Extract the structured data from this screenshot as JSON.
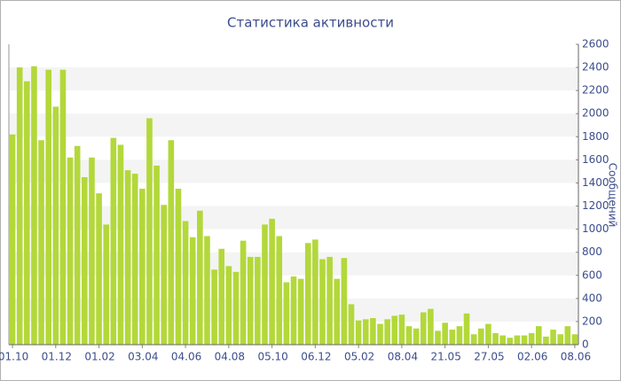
{
  "chart_data": {
    "type": "bar",
    "title": "Статистика активности",
    "y_label": "Сообщений",
    "categories": [
      "01.10",
      null,
      null,
      null,
      null,
      null,
      "01.12",
      null,
      null,
      null,
      null,
      null,
      "01.02",
      null,
      null,
      null,
      null,
      null,
      "03.04",
      null,
      null,
      null,
      null,
      null,
      "04.06",
      null,
      null,
      null,
      null,
      null,
      "04.08",
      null,
      null,
      null,
      null,
      null,
      "05.10",
      null,
      null,
      null,
      null,
      null,
      "06.12",
      null,
      null,
      null,
      null,
      null,
      "05.02",
      null,
      null,
      null,
      null,
      null,
      "08.04",
      null,
      null,
      null,
      null,
      null,
      "21.05",
      null,
      null,
      null,
      null,
      null,
      "27.05",
      null,
      null,
      null,
      null,
      null,
      "02.06",
      null,
      null,
      null,
      null,
      null,
      "08.06"
    ],
    "values": [
      1820,
      2400,
      2280,
      2410,
      1770,
      2380,
      2060,
      2380,
      1620,
      1720,
      1450,
      1620,
      1310,
      1040,
      1790,
      1730,
      1510,
      1480,
      1350,
      1960,
      1550,
      1210,
      1770,
      1350,
      1070,
      930,
      1160,
      940,
      650,
      830,
      680,
      630,
      900,
      760,
      760,
      1040,
      1090,
      940,
      540,
      590,
      570,
      880,
      910,
      740,
      760,
      570,
      750,
      350,
      210,
      220,
      230,
      180,
      220,
      250,
      260,
      160,
      140,
      280,
      310,
      120,
      190,
      130,
      160,
      270,
      90,
      140,
      180,
      100,
      80,
      60,
      80,
      80,
      100,
      160,
      70,
      130,
      90,
      160,
      90
    ],
    "color": "#b3d83a",
    "ylim": [
      0,
      2600
    ],
    "yticks": [
      0,
      200,
      400,
      600,
      800,
      1000,
      1200,
      1400,
      1600,
      1800,
      2000,
      2200,
      2400,
      2600
    ],
    "grid": true
  }
}
